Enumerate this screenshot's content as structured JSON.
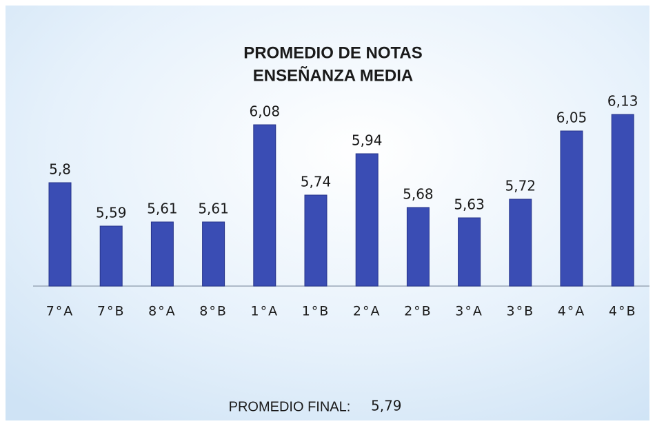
{
  "chart_data": {
    "type": "bar",
    "title": [
      "PROMEDIO  DE NOTAS",
      "ENSEÑANZA MEDIA"
    ],
    "categories": [
      "7°A",
      "7°B",
      "8°A",
      "8°B",
      "1°A",
      "1°B",
      "2°A",
      "2°B",
      "3°A",
      "3°B",
      "4°A",
      "4°B"
    ],
    "values": [
      5.8,
      5.59,
      5.61,
      5.61,
      6.08,
      5.74,
      5.94,
      5.68,
      5.63,
      5.72,
      6.05,
      6.13
    ],
    "value_labels": [
      "5,8",
      "5,59",
      "5,61",
      "5,61",
      "6,08",
      "5,74",
      "5,94",
      "5,68",
      "5,63",
      "5,72",
      "6,05",
      "6,13"
    ],
    "color": "#3a4db4",
    "ylim": [
      5.3,
      6.2
    ],
    "footer": {
      "label": "PROMEDIO FINAL:",
      "value": "5,79"
    }
  }
}
